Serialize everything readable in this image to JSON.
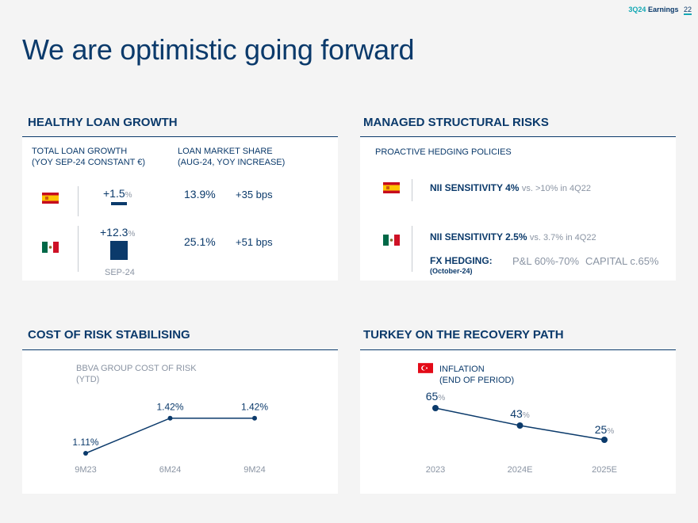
{
  "header": {
    "acc": "3Q24",
    "earnings": "Earnings",
    "page": "22"
  },
  "title": "We are optimistic going forward",
  "colors": {
    "navy": "#0b3a6b",
    "teal": "#14a8b4",
    "panel": "#ffffff",
    "background": "#f4f4f4"
  },
  "loan_growth": {
    "title": "HEALTHY LOAN GROWTH",
    "col1_label": [
      "TOTAL LOAN GROWTH",
      "(YOY SEP-24  CONSTANT €)"
    ],
    "col2_label": [
      "LOAN MARKET SHARE",
      "(AUG-24, YOY INCREASE)"
    ],
    "rows": [
      {
        "flag": "spain-flag",
        "growth": "+1.5",
        "growth_unit": "%",
        "growth_value": 1.5,
        "share": "13.9%",
        "share_inc": "+35 bps"
      },
      {
        "flag": "mexico-flag",
        "growth": "+12.3",
        "growth_unit": "%",
        "growth_value": 12.3,
        "share": "25.1%",
        "share_inc": "+51 bps"
      }
    ],
    "footer": "SEP-24"
  },
  "structural_risks": {
    "title": "MANAGED STRUCTURAL RISKS",
    "subtitle": "PROACTIVE HEDGING POLICIES",
    "spain": {
      "flag": "spain-flag",
      "label": "NII SENSITIVITY 4%",
      "detail": "vs. >10% in 4Q22"
    },
    "mexico": {
      "flag": "mexico-flag",
      "label": "NII SENSITIVITY 2.5%",
      "detail": "vs. 3.7% in 4Q22"
    },
    "fx": {
      "label": "FX HEDGING:",
      "note": "(October-24)",
      "pl": "P&L 60%-70%",
      "capital": "CAPITAL c.65%"
    }
  },
  "cost_of_risk": {
    "title": "COST OF RISK STABILISING",
    "chart_label": [
      "BBVA GROUP COST OF RISK",
      "(YTD)"
    ]
  },
  "turkey": {
    "title": "TURKEY ON THE RECOVERY PATH",
    "flag": "turkey-flag",
    "chart_label": [
      "INFLATION",
      "(END OF PERIOD)"
    ]
  },
  "chart_data": [
    {
      "type": "line",
      "categories": [
        "9M23",
        "6M24",
        "9M24"
      ],
      "values": [
        1.11,
        1.42,
        1.42
      ],
      "data_labels": [
        "1.11%",
        "1.42%",
        "1.42%"
      ],
      "title": "BBVA GROUP COST OF RISK (YTD)",
      "ylim": [
        0.9,
        1.6
      ]
    },
    {
      "type": "line",
      "categories": [
        "2023",
        "2024E",
        "2025E"
      ],
      "values": [
        65,
        43,
        25
      ],
      "data_labels": [
        "65",
        "43",
        "25"
      ],
      "unit": "%",
      "title": "INFLATION (END OF PERIOD)",
      "ylim": [
        10,
        110
      ]
    }
  ]
}
